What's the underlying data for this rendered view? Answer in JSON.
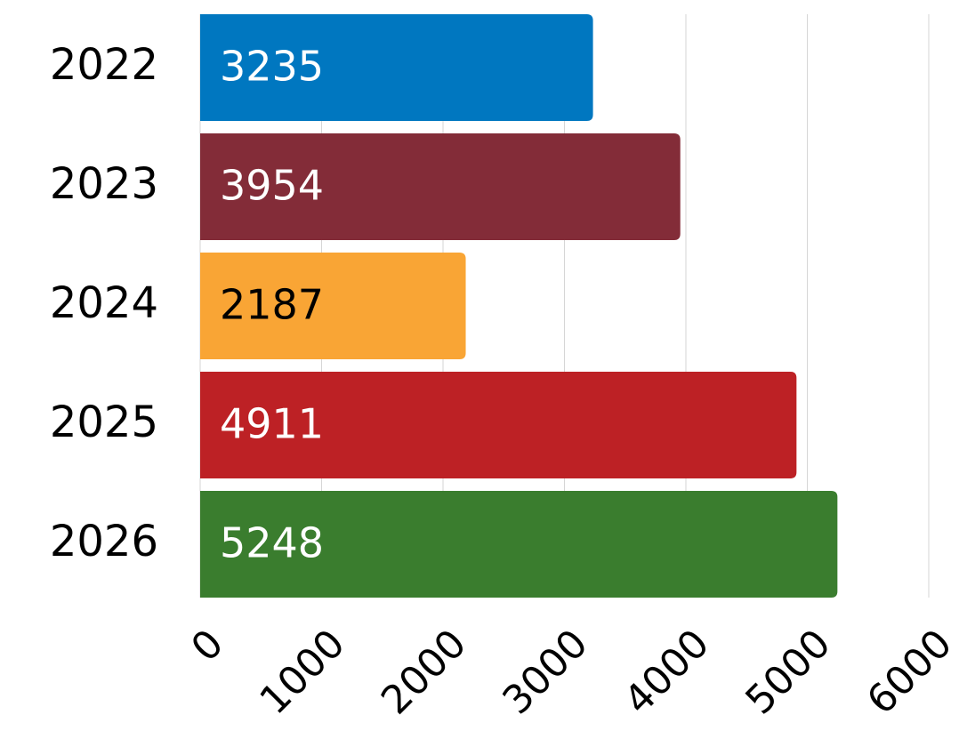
{
  "chart_data": {
    "type": "bar",
    "orientation": "horizontal",
    "categories": [
      "2022",
      "2023",
      "2024",
      "2025",
      "2026"
    ],
    "values": [
      3235,
      3954,
      2187,
      4911,
      5248
    ],
    "colors": [
      "#0077c0",
      "#832c38",
      "#f9a535",
      "#bd2125",
      "#3a7d2e"
    ],
    "label_colors": [
      "#ffffff",
      "#ffffff",
      "#000000",
      "#ffffff",
      "#ffffff"
    ],
    "xlim": [
      0,
      6000
    ],
    "xticks": [
      0,
      1000,
      2000,
      3000,
      4000,
      5000,
      6000
    ],
    "grid": true
  }
}
